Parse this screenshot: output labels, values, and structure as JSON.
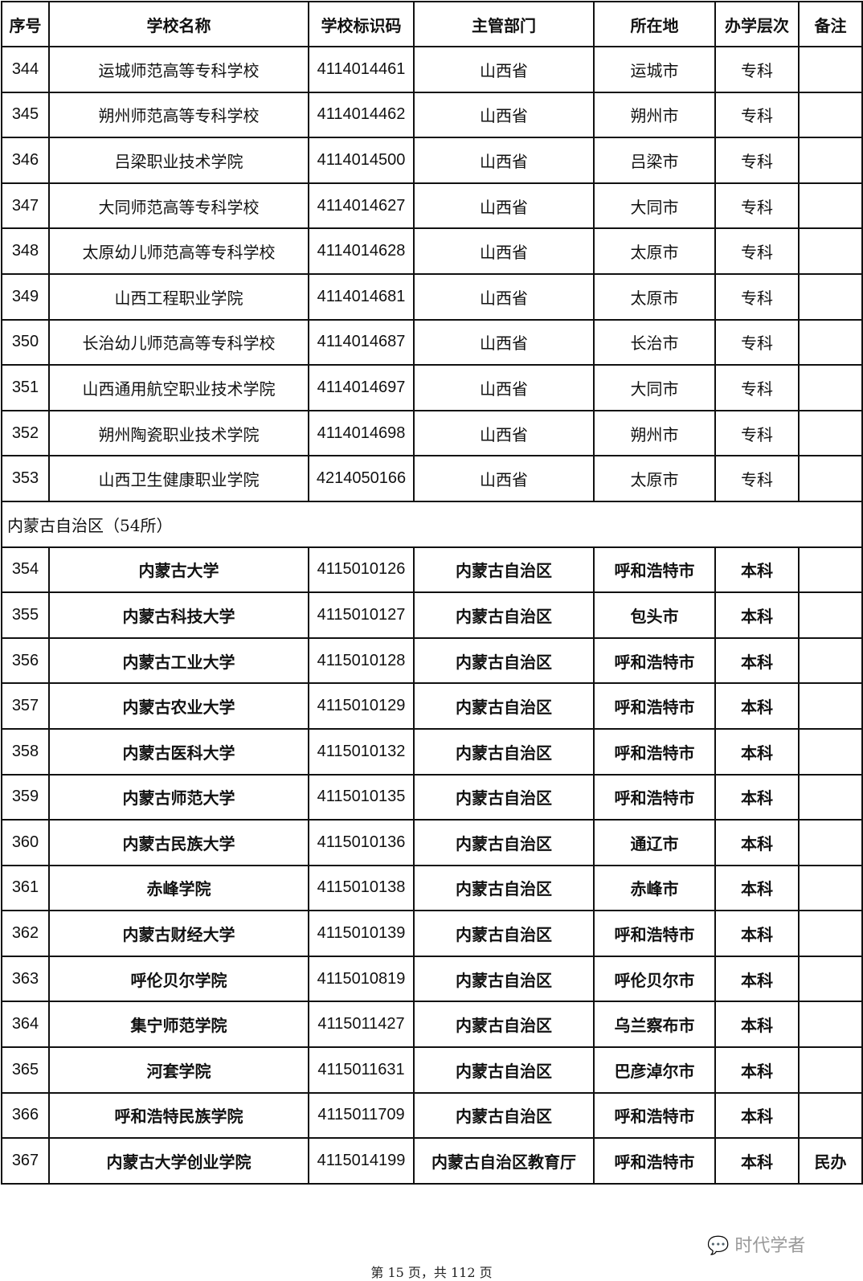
{
  "headers": [
    "序号",
    "学校名称",
    "学校标识码",
    "主管部门",
    "所在地",
    "办学层次",
    "备注"
  ],
  "rows_a": [
    [
      "344",
      "运城师范高等专科学校",
      "4114014461",
      "山西省",
      "运城市",
      "专科",
      ""
    ],
    [
      "345",
      "朔州师范高等专科学校",
      "4114014462",
      "山西省",
      "朔州市",
      "专科",
      ""
    ],
    [
      "346",
      "吕梁职业技术学院",
      "4114014500",
      "山西省",
      "吕梁市",
      "专科",
      ""
    ],
    [
      "347",
      "大同师范高等专科学校",
      "4114014627",
      "山西省",
      "大同市",
      "专科",
      ""
    ],
    [
      "348",
      "太原幼儿师范高等专科学校",
      "4114014628",
      "山西省",
      "太原市",
      "专科",
      ""
    ],
    [
      "349",
      "山西工程职业学院",
      "4114014681",
      "山西省",
      "太原市",
      "专科",
      ""
    ],
    [
      "350",
      "长治幼儿师范高等专科学校",
      "4114014687",
      "山西省",
      "长治市",
      "专科",
      ""
    ],
    [
      "351",
      "山西通用航空职业技术学院",
      "4114014697",
      "山西省",
      "大同市",
      "专科",
      ""
    ],
    [
      "352",
      "朔州陶瓷职业技术学院",
      "4114014698",
      "山西省",
      "朔州市",
      "专科",
      ""
    ],
    [
      "353",
      "山西卫生健康职业学院",
      "4214050166",
      "山西省",
      "太原市",
      "专科",
      ""
    ]
  ],
  "section": "内蒙古自治区（54所）",
  "rows_b": [
    [
      "354",
      "内蒙古大学",
      "4115010126",
      "内蒙古自治区",
      "呼和浩特市",
      "本科",
      ""
    ],
    [
      "355",
      "内蒙古科技大学",
      "4115010127",
      "内蒙古自治区",
      "包头市",
      "本科",
      ""
    ],
    [
      "356",
      "内蒙古工业大学",
      "4115010128",
      "内蒙古自治区",
      "呼和浩特市",
      "本科",
      ""
    ],
    [
      "357",
      "内蒙古农业大学",
      "4115010129",
      "内蒙古自治区",
      "呼和浩特市",
      "本科",
      ""
    ],
    [
      "358",
      "内蒙古医科大学",
      "4115010132",
      "内蒙古自治区",
      "呼和浩特市",
      "本科",
      ""
    ],
    [
      "359",
      "内蒙古师范大学",
      "4115010135",
      "内蒙古自治区",
      "呼和浩特市",
      "本科",
      ""
    ],
    [
      "360",
      "内蒙古民族大学",
      "4115010136",
      "内蒙古自治区",
      "通辽市",
      "本科",
      ""
    ],
    [
      "361",
      "赤峰学院",
      "4115010138",
      "内蒙古自治区",
      "赤峰市",
      "本科",
      ""
    ],
    [
      "362",
      "内蒙古财经大学",
      "4115010139",
      "内蒙古自治区",
      "呼和浩特市",
      "本科",
      ""
    ],
    [
      "363",
      "呼伦贝尔学院",
      "4115010819",
      "内蒙古自治区",
      "呼伦贝尔市",
      "本科",
      ""
    ],
    [
      "364",
      "集宁师范学院",
      "4115011427",
      "内蒙古自治区",
      "乌兰察布市",
      "本科",
      ""
    ],
    [
      "365",
      "河套学院",
      "4115011631",
      "内蒙古自治区",
      "巴彦淖尔市",
      "本科",
      ""
    ],
    [
      "366",
      "呼和浩特民族学院",
      "4115011709",
      "内蒙古自治区",
      "呼和浩特市",
      "本科",
      ""
    ],
    [
      "367",
      "内蒙古大学创业学院",
      "4115014199",
      "内蒙古自治区教育厅",
      "呼和浩特市",
      "本科",
      "民办"
    ]
  ],
  "watermark": "时代学者",
  "footer": "第 15 页，共 112 页"
}
